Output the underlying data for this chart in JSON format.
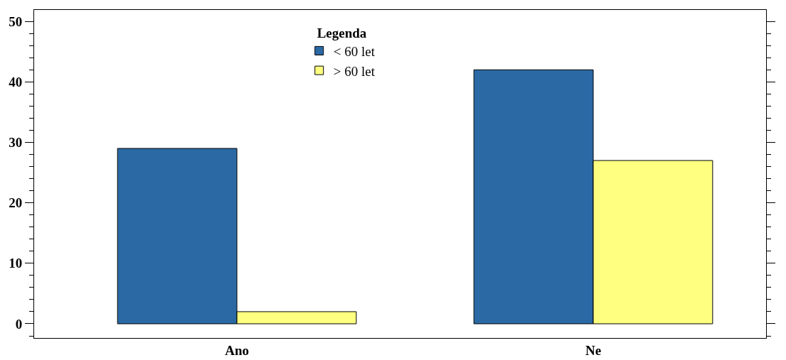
{
  "chart_data": {
    "type": "bar",
    "categories": [
      "Ano",
      "Ne"
    ],
    "series": [
      {
        "name": "< 60 let",
        "color": "#2a69a4",
        "values": [
          29,
          42
        ]
      },
      {
        "name": "> 60 let",
        "color": "#ffff80",
        "values": [
          2,
          27
        ]
      }
    ],
    "legend_title": "Legenda",
    "legend": "top",
    "ylim": [
      -2.35,
      51.9
    ],
    "yticks": [
      0,
      10,
      20,
      30,
      40,
      50
    ],
    "grid": false
  }
}
